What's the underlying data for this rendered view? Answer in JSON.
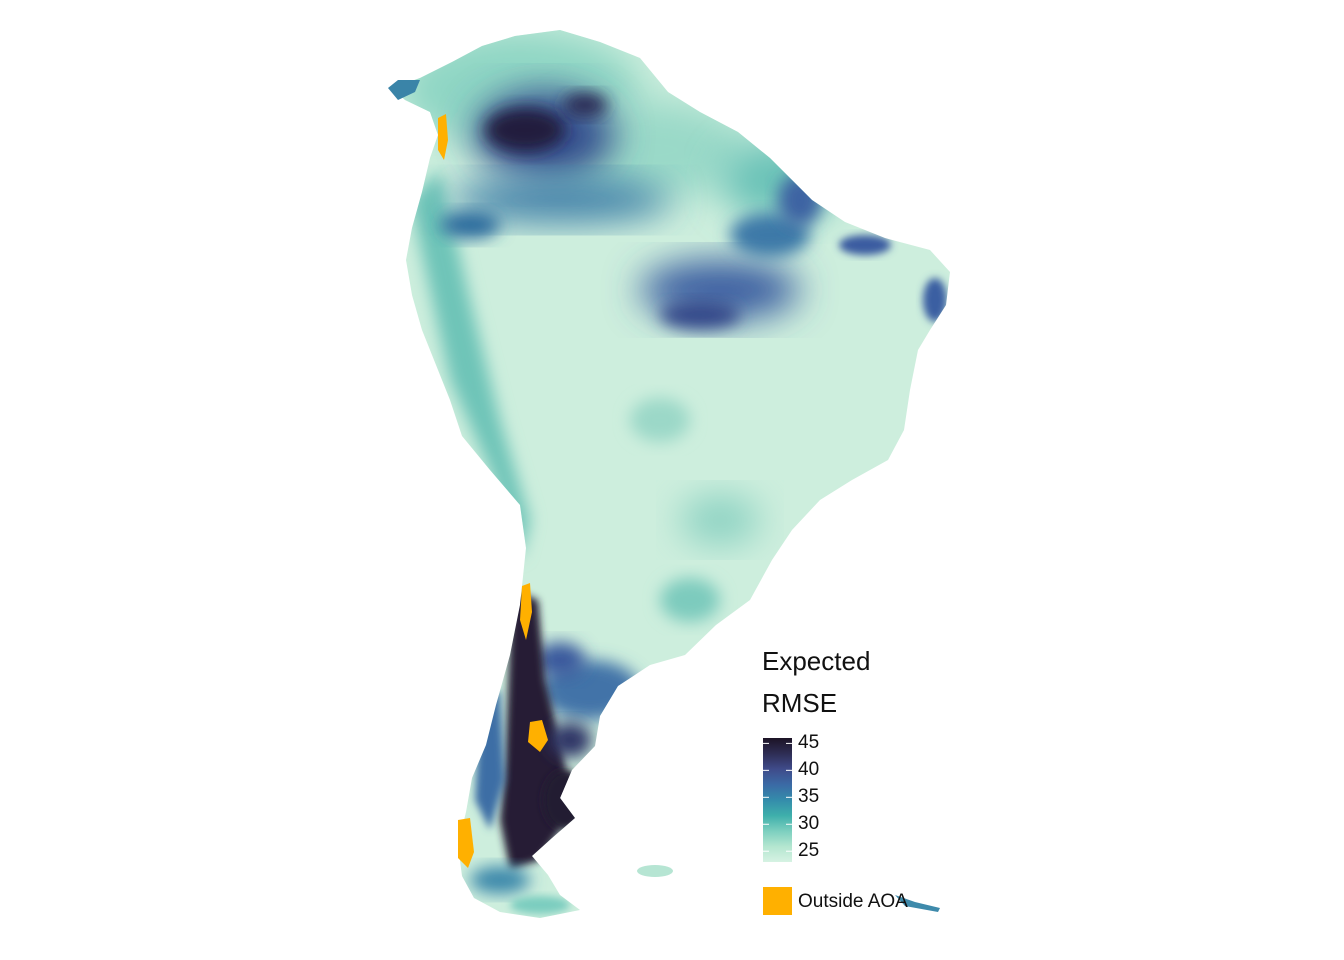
{
  "map": {
    "region": "South America",
    "palette": [
      "#d6f2e3",
      "#b4e6d0",
      "#7ccfbf",
      "#3eafab",
      "#348cab",
      "#3b6aa5",
      "#3f4b8a",
      "#2e2d54",
      "#1c1326"
    ]
  },
  "legend": {
    "title_line1": "Expected",
    "title_line2": "RMSE",
    "range": [
      23,
      46
    ],
    "ticks": [
      "45",
      "40",
      "35",
      "30",
      "25"
    ],
    "outside_label": "Outside AOA",
    "outside_color": "#ffb000"
  }
}
